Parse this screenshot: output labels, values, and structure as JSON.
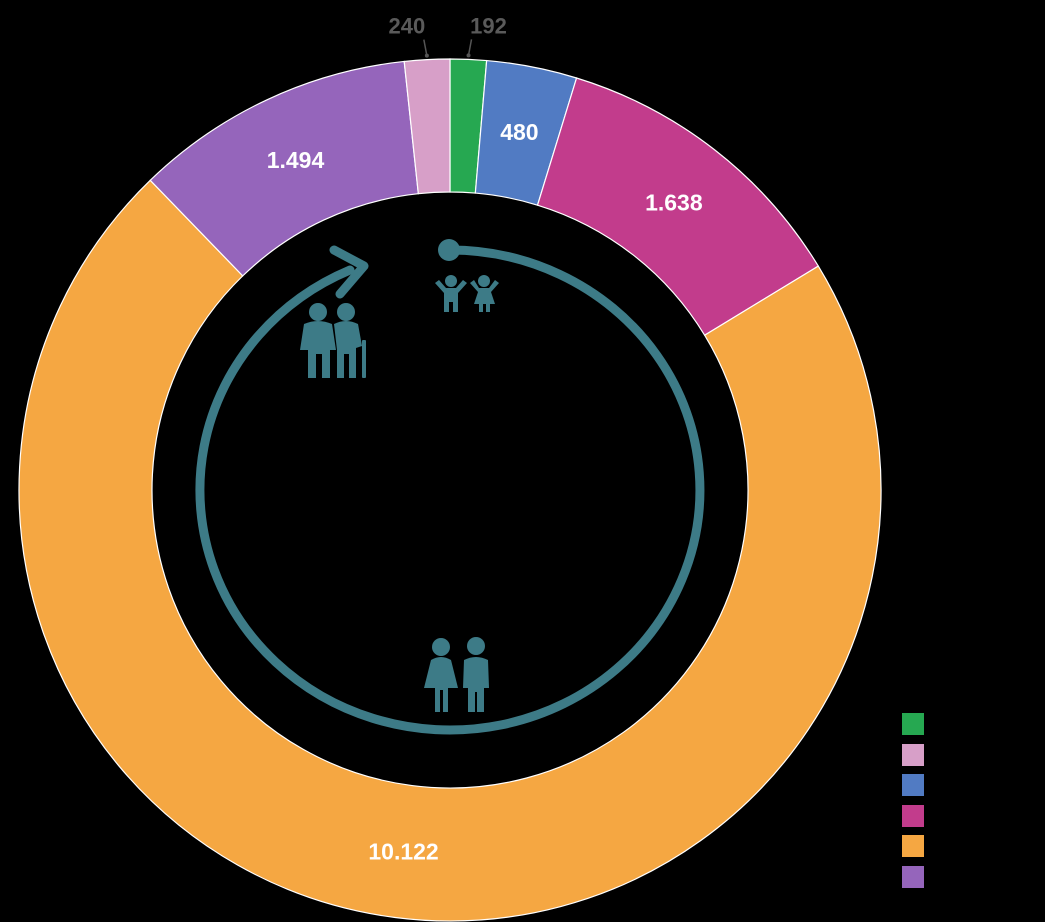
{
  "chart_data": {
    "type": "pie",
    "subtype": "donut",
    "title": "",
    "slices": [
      {
        "name": "",
        "value": 192,
        "label": "192",
        "color": "#26a851",
        "label_style": "outside-dark"
      },
      {
        "name": "",
        "value": 480,
        "label": "480",
        "color": "#517bc3",
        "label_style": "inside"
      },
      {
        "name": "",
        "value": 1638,
        "label": "1.638",
        "color": "#c23c8c",
        "label_style": "inside"
      },
      {
        "name": "",
        "value": 10122,
        "label": "10.122",
        "color": "#f5a742",
        "label_style": "inside"
      },
      {
        "name": "",
        "value": 1494,
        "label": "1.494",
        "color": "#9565bb",
        "label_style": "inside"
      },
      {
        "name": "",
        "value": 240,
        "label": "240",
        "color": "#d79fc8",
        "label_style": "outside-dark"
      }
    ],
    "start": "top-clockwise",
    "legend_position": "bottom-right",
    "legend_order": [
      0,
      5,
      1,
      2,
      3,
      4
    ]
  },
  "decor": {
    "lifecycle_color": "#3d7b87",
    "icons": [
      "children-icon",
      "adult-couple-icon",
      "elderly-couple-icon",
      "cycle-arrow-icon"
    ]
  }
}
